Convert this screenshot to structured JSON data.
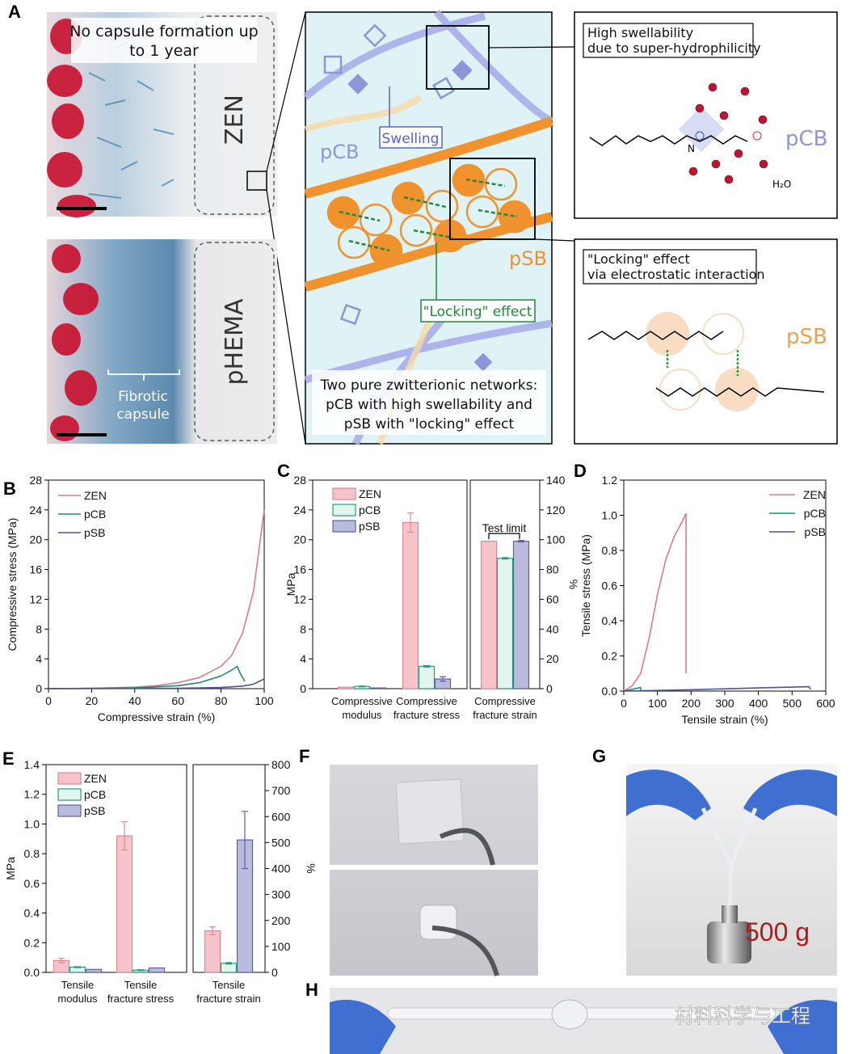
{
  "panel_labels": [
    "A",
    "B",
    "C",
    "D",
    "E",
    "F",
    "G",
    "H"
  ],
  "panel_a": {
    "top_image_note": "No capsule formation up",
    "top_image_note2": "to 1 year",
    "top_image_material": "ZEN",
    "bottom_image_material": "pHEMA",
    "bottom_capsule_label1": "Fibrotic",
    "bottom_capsule_label2": "capsule",
    "diagram": {
      "pcb_label": "pCB",
      "psb_label": "pSB",
      "swelling_label": "Swelling",
      "locking_label": "\"Locking\" effect",
      "caption_lines": [
        "Two pure zwitterionic networks:",
        "pCB with high swellability and",
        "pSB with \"locking\" effect"
      ]
    },
    "inset_top": {
      "title1": "High swellability",
      "title2": "due to super-hydrophilicity",
      "polymer": "pCB",
      "water": "H₂O"
    },
    "inset_bottom": {
      "title1": "\"Locking\" effect",
      "title2": "via electrostatic interaction",
      "polymer": "pSB"
    },
    "colors": {
      "pcb": "#8e95d8",
      "psb": "#f0922e",
      "locking": "#1f8a3a",
      "tissue_red": "#c8102e",
      "collagen_blue": "#3d7fa8"
    }
  },
  "panel_g": {
    "weight_label": "500 g"
  },
  "panel_h": {
    "watermark": "材料科学与工程"
  },
  "series_colors": {
    "ZEN": "#dd7b80",
    "pCB": "#1f8c7a",
    "pSB": "#4d5294"
  },
  "bar_colors": {
    "ZEN": {
      "fill": "#f6c3ca",
      "stroke": "#d98a92"
    },
    "pCB": {
      "fill": "#e2f5ee",
      "stroke": "#2a9a80"
    },
    "pSB": {
      "fill": "#b9bbdc",
      "stroke": "#5d629c"
    }
  },
  "chart_data": [
    {
      "panel": "B",
      "type": "line",
      "xlabel": "Compressive strain (%)",
      "ylabel": "Compressive stress (MPa)",
      "xlim": [
        0,
        100
      ],
      "ylim": [
        0,
        28
      ],
      "xticks": [
        0,
        20,
        40,
        60,
        80,
        100
      ],
      "yticks": [
        0,
        4,
        8,
        12,
        16,
        20,
        24,
        28
      ],
      "legend": "top-left",
      "series": [
        {
          "name": "ZEN",
          "x": [
            0,
            20,
            40,
            50,
            60,
            70,
            80,
            85,
            90,
            95,
            100
          ],
          "y": [
            0,
            0.05,
            0.2,
            0.4,
            0.8,
            1.5,
            3.0,
            4.5,
            7.5,
            13,
            24
          ]
        },
        {
          "name": "pCB",
          "x": [
            0,
            40,
            60,
            70,
            80,
            85,
            87.5,
            89,
            91
          ],
          "y": [
            0,
            0.1,
            0.4,
            0.8,
            1.7,
            2.5,
            3.0,
            2.0,
            1.0
          ]
        },
        {
          "name": "pSB",
          "x": [
            0,
            60,
            80,
            90,
            95,
            100
          ],
          "y": [
            0,
            0.05,
            0.15,
            0.35,
            0.6,
            1.3
          ]
        }
      ]
    },
    {
      "panel": "C",
      "type": "bar",
      "ylabel": "MPa",
      "y2label": "%",
      "ylim": [
        0,
        28
      ],
      "y2lim": [
        0,
        140
      ],
      "yticks": [
        0,
        4,
        8,
        12,
        16,
        20,
        24,
        28
      ],
      "y2ticks": [
        0,
        20,
        40,
        60,
        80,
        100,
        120,
        140
      ],
      "legend": "top-left",
      "annotation": "Test limit",
      "groups": [
        {
          "label": [
            "Compressive",
            "modulus"
          ],
          "axis": "left",
          "values": {
            "ZEN": 0.2,
            "pCB": 0.3,
            "pSB": 0.1
          },
          "errors": {
            "ZEN": 0,
            "pCB": 0.05,
            "pSB": 0
          }
        },
        {
          "label": [
            "Compressive",
            "fracture stress"
          ],
          "axis": "left",
          "values": {
            "ZEN": 22.3,
            "pCB": 3.0,
            "pSB": 1.3
          },
          "errors": {
            "ZEN": 1.3,
            "pCB": 0.1,
            "pSB": 0.3
          }
        },
        {
          "label": [
            "Compressive",
            "fracture strain"
          ],
          "axis": "right",
          "values": {
            "ZEN": 99,
            "pCB": 87.5,
            "pSB": 99
          },
          "errors": {
            "ZEN": 0,
            "pCB": 0.5,
            "pSB": 0.5
          }
        }
      ]
    },
    {
      "panel": "D",
      "type": "line",
      "xlabel": "Tensile strain (%)",
      "ylabel": "Tensile stress (MPa)",
      "xlim": [
        0,
        600
      ],
      "ylim": [
        0,
        1.2
      ],
      "xticks": [
        0,
        100,
        200,
        300,
        400,
        500,
        600
      ],
      "yticks": [
        "0.0",
        "0.2",
        "0.4",
        "0.6",
        "0.8",
        "1.0",
        "1.2"
      ],
      "legend": "top-right",
      "series": [
        {
          "name": "ZEN",
          "x": [
            0,
            25,
            50,
            75,
            100,
            125,
            150,
            175,
            185,
            185
          ],
          "y": [
            0,
            0.03,
            0.1,
            0.3,
            0.55,
            0.75,
            0.88,
            0.97,
            1.01,
            0.1
          ]
        },
        {
          "name": "pCB",
          "x": [
            0,
            25,
            50,
            50
          ],
          "y": [
            0,
            0.01,
            0.02,
            0
          ]
        },
        {
          "name": "pSB",
          "x": [
            0,
            200,
            400,
            550,
            555
          ],
          "y": [
            0,
            0.008,
            0.018,
            0.025,
            0.01
          ]
        }
      ]
    },
    {
      "panel": "E",
      "type": "bar",
      "ylabel": "MPa",
      "y2label": "%",
      "ylim": [
        0,
        1.4
      ],
      "y2lim": [
        0,
        800
      ],
      "yticks": [
        "0.0",
        "0.2",
        "0.4",
        "0.6",
        "0.8",
        "1.0",
        "1.2",
        "1.4"
      ],
      "y2ticks": [
        0,
        100,
        200,
        300,
        400,
        500,
        600,
        700,
        800
      ],
      "legend": "top-left",
      "groups": [
        {
          "label": [
            "Tensile",
            "modulus"
          ],
          "axis": "left",
          "values": {
            "ZEN": 0.08,
            "pCB": 0.035,
            "pSB": 0.02
          },
          "errors": {
            "ZEN": 0.015,
            "pCB": 0.003,
            "pSB": 0
          }
        },
        {
          "label": [
            "Tensile",
            "fracture stress"
          ],
          "axis": "left",
          "values": {
            "ZEN": 0.92,
            "pCB": 0.015,
            "pSB": 0.03
          },
          "errors": {
            "ZEN": 0.095,
            "pCB": 0.003,
            "pSB": 0
          }
        },
        {
          "label": [
            "Tensile",
            "fracture strain"
          ],
          "axis": "right",
          "values": {
            "ZEN": 160,
            "pCB": 35,
            "pSB": 510
          },
          "errors": {
            "ZEN": 15,
            "pCB": 3,
            "pSB": 110
          }
        }
      ]
    }
  ]
}
